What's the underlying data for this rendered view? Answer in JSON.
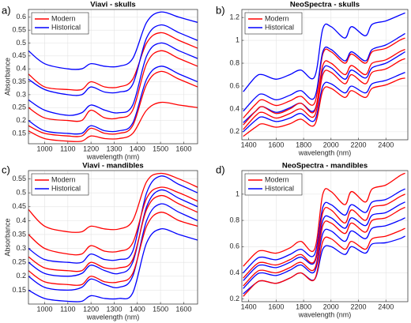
{
  "chart_data": [
    {
      "type": "line",
      "panel_label": "a)",
      "title": "Viavi - skulls",
      "xlabel": "wavelength (nm)",
      "ylabel": "Absorbance",
      "grid": true,
      "legend": "upper left",
      "x": [
        930,
        1000,
        1100,
        1160,
        1200,
        1260,
        1320,
        1380,
        1440,
        1500,
        1580,
        1660
      ],
      "xlim": [
        930,
        1660
      ],
      "xticks": [
        1000,
        1100,
        1200,
        1300,
        1400,
        1500,
        1600
      ],
      "ylim": [
        0.11,
        0.63
      ],
      "yticks": [
        0.15,
        0.2,
        0.25,
        0.3,
        0.35,
        0.4,
        0.45,
        0.5,
        0.55,
        0.6
      ],
      "series": [
        {
          "name": "Modern",
          "color": "#ff0000",
          "values": [
            0.38,
            0.33,
            0.32,
            0.32,
            0.35,
            0.33,
            0.33,
            0.36,
            0.5,
            0.54,
            0.51,
            0.48
          ]
        },
        {
          "name": "Historical",
          "color": "#0000ff",
          "values": [
            0.47,
            0.42,
            0.4,
            0.4,
            0.42,
            0.41,
            0.41,
            0.44,
            0.58,
            0.62,
            0.6,
            0.58
          ]
        },
        {
          "name": "Historical",
          "color": "#0000ff",
          "values": [
            0.36,
            0.32,
            0.3,
            0.3,
            0.33,
            0.31,
            0.31,
            0.34,
            0.52,
            0.57,
            0.54,
            0.51
          ]
        },
        {
          "name": "Historical",
          "color": "#0000ff",
          "values": [
            0.28,
            0.24,
            0.22,
            0.23,
            0.26,
            0.24,
            0.23,
            0.26,
            0.45,
            0.5,
            0.47,
            0.44
          ]
        },
        {
          "name": "Historical",
          "color": "#0000ff",
          "values": [
            0.2,
            0.16,
            0.15,
            0.15,
            0.18,
            0.16,
            0.16,
            0.19,
            0.36,
            0.41,
            0.38,
            0.35
          ]
        },
        {
          "name": "Modern",
          "color": "#ff0000",
          "values": [
            0.25,
            0.21,
            0.2,
            0.2,
            0.24,
            0.21,
            0.21,
            0.24,
            0.42,
            0.47,
            0.44,
            0.41
          ]
        },
        {
          "name": "Modern",
          "color": "#ff0000",
          "values": [
            0.18,
            0.15,
            0.14,
            0.14,
            0.17,
            0.15,
            0.15,
            0.18,
            0.34,
            0.39,
            0.36,
            0.33
          ]
        },
        {
          "name": "Modern",
          "color": "#ff0000",
          "values": [
            0.16,
            0.13,
            0.12,
            0.12,
            0.14,
            0.13,
            0.13,
            0.15,
            0.24,
            0.27,
            0.26,
            0.25
          ]
        }
      ]
    },
    {
      "type": "line",
      "panel_label": "b)",
      "title": "NeoSpectra - skulls",
      "xlabel": "wavelength (nm)",
      "grid": true,
      "legend": "upper left",
      "x": [
        1360,
        1450,
        1500,
        1600,
        1700,
        1780,
        1880,
        1940,
        2000,
        2100,
        2150,
        2250,
        2300,
        2400,
        2500,
        2540
      ],
      "xlim": [
        1350,
        2560
      ],
      "xticks": [
        1400,
        1600,
        1800,
        2000,
        2200,
        2400
      ],
      "ylim": [
        0.13,
        1.27
      ],
      "yticks": [
        0.2,
        0.4,
        0.6,
        0.8,
        1,
        1.2
      ],
      "series": [
        {
          "name": "Modern",
          "color": "#ff0000",
          "values": [
            0.32,
            0.44,
            0.48,
            0.43,
            0.47,
            0.51,
            0.45,
            0.88,
            0.9,
            0.8,
            0.88,
            0.8,
            0.9,
            0.93,
            1.0,
            1.02
          ]
        },
        {
          "name": "Historical",
          "color": "#0000ff",
          "values": [
            0.55,
            0.68,
            0.7,
            0.66,
            0.7,
            0.74,
            0.68,
            1.1,
            1.12,
            1.02,
            1.12,
            1.04,
            1.14,
            1.17,
            1.22,
            1.24
          ]
        },
        {
          "name": "Historical",
          "color": "#0000ff",
          "values": [
            0.38,
            0.5,
            0.53,
            0.48,
            0.52,
            0.56,
            0.5,
            0.9,
            0.92,
            0.82,
            0.9,
            0.82,
            0.92,
            0.96,
            1.03,
            1.06
          ]
        },
        {
          "name": "Historical",
          "color": "#0000ff",
          "values": [
            0.28,
            0.38,
            0.42,
            0.37,
            0.41,
            0.45,
            0.39,
            0.74,
            0.76,
            0.66,
            0.74,
            0.67,
            0.76,
            0.8,
            0.87,
            0.9
          ]
        },
        {
          "name": "Historical",
          "color": "#0000ff",
          "values": [
            0.2,
            0.3,
            0.33,
            0.29,
            0.32,
            0.36,
            0.3,
            0.6,
            0.62,
            0.54,
            0.6,
            0.54,
            0.62,
            0.65,
            0.7,
            0.72
          ]
        },
        {
          "name": "Modern",
          "color": "#ff0000",
          "values": [
            0.26,
            0.38,
            0.42,
            0.36,
            0.4,
            0.45,
            0.38,
            0.78,
            0.8,
            0.7,
            0.78,
            0.7,
            0.8,
            0.83,
            0.9,
            0.92
          ]
        },
        {
          "name": "Modern",
          "color": "#ff0000",
          "values": [
            0.22,
            0.34,
            0.37,
            0.32,
            0.36,
            0.4,
            0.34,
            0.7,
            0.72,
            0.62,
            0.7,
            0.62,
            0.72,
            0.75,
            0.82,
            0.84
          ]
        },
        {
          "name": "Modern",
          "color": "#ff0000",
          "values": [
            0.16,
            0.24,
            0.27,
            0.24,
            0.27,
            0.31,
            0.26,
            0.56,
            0.58,
            0.5,
            0.56,
            0.5,
            0.58,
            0.61,
            0.66,
            0.67
          ]
        }
      ]
    },
    {
      "type": "line",
      "panel_label": "c)",
      "title": "Viavi - mandibles",
      "xlabel": "wavelength (nm)",
      "ylabel": "Absorbance",
      "grid": true,
      "legend": "upper left",
      "x": [
        930,
        1000,
        1100,
        1160,
        1200,
        1260,
        1320,
        1380,
        1440,
        1500,
        1580,
        1660
      ],
      "xlim": [
        930,
        1660
      ],
      "xticks": [
        1000,
        1100,
        1200,
        1300,
        1400,
        1500,
        1600
      ],
      "ylim": [
        0.1,
        0.58
      ],
      "yticks": [
        0.15,
        0.2,
        0.25,
        0.3,
        0.35,
        0.4,
        0.45,
        0.5,
        0.55
      ],
      "series": [
        {
          "name": "Modern",
          "color": "#ff0000",
          "values": [
            0.44,
            0.38,
            0.36,
            0.36,
            0.38,
            0.37,
            0.37,
            0.4,
            0.54,
            0.57,
            0.55,
            0.52
          ]
        },
        {
          "name": "Historical",
          "color": "#0000ff",
          "values": [
            0.3,
            0.26,
            0.25,
            0.25,
            0.28,
            0.26,
            0.26,
            0.29,
            0.5,
            0.56,
            0.53,
            0.5
          ]
        },
        {
          "name": "Historical",
          "color": "#0000ff",
          "values": [
            0.25,
            0.21,
            0.2,
            0.21,
            0.24,
            0.22,
            0.21,
            0.25,
            0.45,
            0.51,
            0.48,
            0.45
          ]
        },
        {
          "name": "Historical",
          "color": "#0000ff",
          "values": [
            0.2,
            0.16,
            0.15,
            0.16,
            0.19,
            0.17,
            0.16,
            0.2,
            0.4,
            0.46,
            0.43,
            0.4
          ]
        },
        {
          "name": "Historical",
          "color": "#0000ff",
          "values": [
            0.15,
            0.12,
            0.11,
            0.11,
            0.13,
            0.12,
            0.12,
            0.14,
            0.32,
            0.37,
            0.35,
            0.33
          ]
        },
        {
          "name": "Modern",
          "color": "#ff0000",
          "values": [
            0.35,
            0.3,
            0.28,
            0.28,
            0.31,
            0.29,
            0.29,
            0.32,
            0.48,
            0.52,
            0.5,
            0.47
          ]
        },
        {
          "name": "Modern",
          "color": "#ff0000",
          "values": [
            0.27,
            0.23,
            0.22,
            0.22,
            0.25,
            0.23,
            0.23,
            0.26,
            0.44,
            0.49,
            0.46,
            0.43
          ]
        },
        {
          "name": "Modern",
          "color": "#ff0000",
          "values": [
            0.22,
            0.18,
            0.17,
            0.17,
            0.2,
            0.18,
            0.18,
            0.21,
            0.38,
            0.43,
            0.4,
            0.38
          ]
        }
      ]
    },
    {
      "type": "line",
      "panel_label": "d)",
      "title": "NeoSpectra - mandibles",
      "xlabel": "wavelength (nm)",
      "grid": true,
      "legend": "upper left",
      "x": [
        1360,
        1450,
        1500,
        1600,
        1700,
        1780,
        1880,
        1940,
        2000,
        2100,
        2150,
        2250,
        2300,
        2400,
        2500,
        2540
      ],
      "xlim": [
        1350,
        2560
      ],
      "xticks": [
        1400,
        1600,
        1800,
        2000,
        2200,
        2400
      ],
      "ylim": [
        0.18,
        1.18
      ],
      "yticks": [
        0.2,
        0.4,
        0.6,
        0.8,
        1
      ],
      "series": [
        {
          "name": "Modern",
          "color": "#ff0000",
          "values": [
            0.45,
            0.55,
            0.57,
            0.55,
            0.59,
            0.64,
            0.58,
            1.0,
            1.02,
            0.92,
            1.02,
            0.94,
            1.04,
            1.07,
            1.14,
            1.16
          ]
        },
        {
          "name": "Historical",
          "color": "#0000ff",
          "values": [
            0.4,
            0.5,
            0.52,
            0.5,
            0.54,
            0.58,
            0.54,
            0.9,
            0.92,
            0.84,
            0.92,
            0.86,
            0.94,
            0.96,
            1.02,
            1.04
          ]
        },
        {
          "name": "Historical",
          "color": "#0000ff",
          "values": [
            0.34,
            0.44,
            0.46,
            0.44,
            0.48,
            0.52,
            0.48,
            0.8,
            0.82,
            0.74,
            0.82,
            0.76,
            0.84,
            0.86,
            0.92,
            0.94
          ]
        },
        {
          "name": "Historical",
          "color": "#0000ff",
          "values": [
            0.28,
            0.38,
            0.4,
            0.38,
            0.42,
            0.46,
            0.41,
            0.7,
            0.72,
            0.64,
            0.72,
            0.66,
            0.74,
            0.76,
            0.8,
            0.82
          ]
        },
        {
          "name": "Historical",
          "color": "#0000ff",
          "values": [
            0.24,
            0.32,
            0.34,
            0.32,
            0.36,
            0.4,
            0.35,
            0.58,
            0.6,
            0.54,
            0.6,
            0.55,
            0.62,
            0.63,
            0.66,
            0.68
          ]
        },
        {
          "name": "Modern",
          "color": "#ff0000",
          "values": [
            0.36,
            0.46,
            0.48,
            0.46,
            0.5,
            0.54,
            0.49,
            0.86,
            0.88,
            0.78,
            0.88,
            0.8,
            0.9,
            0.92,
            0.98,
            1.0
          ]
        },
        {
          "name": "Modern",
          "color": "#ff0000",
          "values": [
            0.3,
            0.4,
            0.42,
            0.4,
            0.44,
            0.48,
            0.43,
            0.76,
            0.78,
            0.7,
            0.78,
            0.71,
            0.8,
            0.82,
            0.88,
            0.9
          ]
        },
        {
          "name": "Modern",
          "color": "#ff0000",
          "values": [
            0.22,
            0.32,
            0.34,
            0.32,
            0.36,
            0.4,
            0.35,
            0.64,
            0.66,
            0.58,
            0.64,
            0.58,
            0.66,
            0.68,
            0.72,
            0.74
          ]
        }
      ]
    }
  ]
}
